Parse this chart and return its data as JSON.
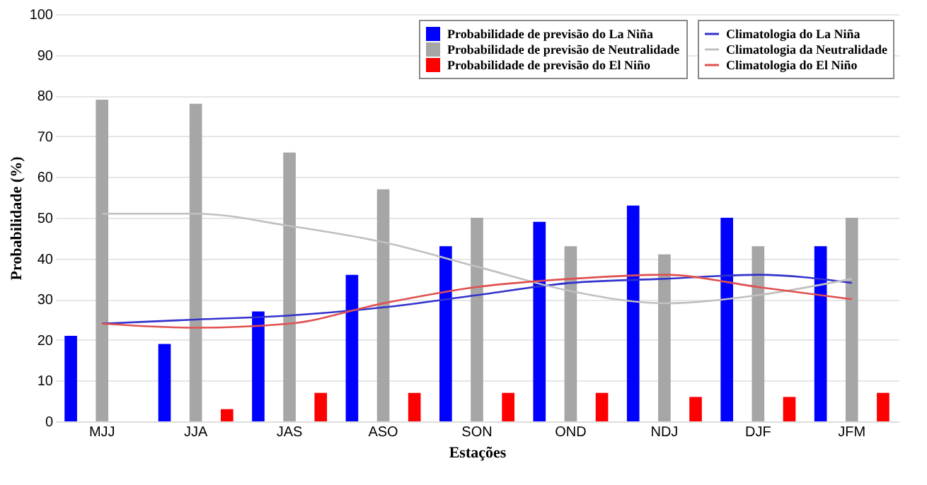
{
  "chart_data": {
    "type": "bar",
    "xlabel": "Estações",
    "ylabel": "Probabilidade (%)",
    "categories": [
      "MJJ",
      "JJA",
      "JAS",
      "ASO",
      "SON",
      "OND",
      "NDJ",
      "DJF",
      "JFM"
    ],
    "series": [
      {
        "name": "Probabilidade de previsão do La Niña",
        "color": "#0000ff",
        "values": [
          21,
          19,
          27,
          36,
          43,
          49,
          53,
          50,
          43
        ]
      },
      {
        "name": "Probabilidade de previsão de Neutralidade",
        "color": "#a6a6a6",
        "values": [
          79,
          78,
          66,
          57,
          50,
          43,
          41,
          43,
          50
        ]
      },
      {
        "name": "Probabilidade de previsão do El Niño",
        "color": "#ff0000",
        "values": [
          0,
          3,
          7,
          7,
          7,
          7,
          6,
          6,
          7
        ]
      },
      {
        "name": "Climatologia do La Niña",
        "type": "line",
        "color": "#3333cc",
        "values": [
          24,
          25,
          26,
          28,
          31,
          34,
          35,
          36,
          34
        ]
      },
      {
        "name": "Climatologia da Neutralidade",
        "type": "line",
        "color": "#c0c0c0",
        "values": [
          51,
          51,
          48,
          44,
          38,
          32,
          29,
          31,
          35
        ]
      },
      {
        "name": "Climatologia do El Niño",
        "type": "line",
        "color": "#e05050",
        "values": [
          24,
          23,
          24,
          29,
          33,
          35,
          36,
          33,
          30
        ]
      }
    ],
    "ylim": [
      0,
      100
    ],
    "yticks": [
      0,
      10,
      20,
      30,
      40,
      50,
      60,
      70,
      80,
      90,
      100
    ],
    "grid": "y",
    "legend": "top right"
  }
}
